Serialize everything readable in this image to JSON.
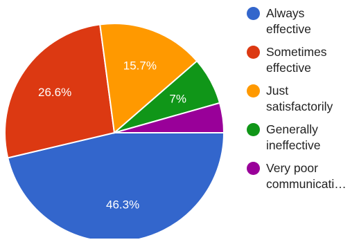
{
  "chart_data": {
    "type": "pie",
    "slices": [
      {
        "label": "Always effective",
        "legend_text": "Always\neffective",
        "value": 46.3,
        "display": "46.3%",
        "color": "#3366cc"
      },
      {
        "label": "Sometimes effective",
        "legend_text": "Sometimes\neffective",
        "value": 26.6,
        "display": "26.6%",
        "color": "#dc3912"
      },
      {
        "label": "Just satisfactorily",
        "legend_text": "Just\nsatisfactorily",
        "value": 15.7,
        "display": "15.7%",
        "color": "#ff9900"
      },
      {
        "label": "Generally ineffective",
        "legend_text": "Generally\nineffective",
        "value": 7.0,
        "display": "7%",
        "color": "#109618"
      },
      {
        "label": "Very poor communicati…",
        "legend_text": "Very poor\ncommunicati…",
        "value": 4.4,
        "display": "",
        "color": "#990099"
      }
    ],
    "legend_position": "right"
  }
}
